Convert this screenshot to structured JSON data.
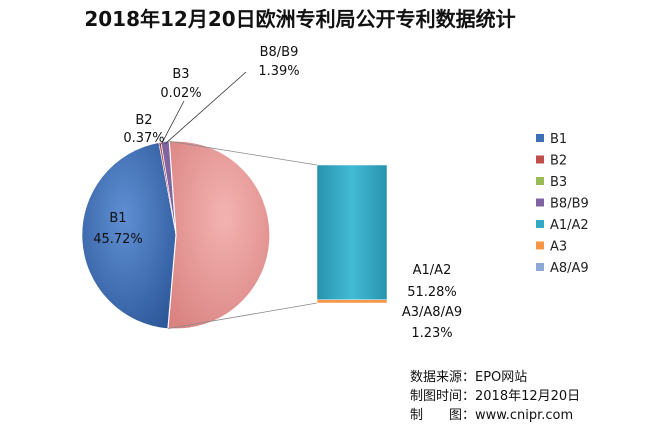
{
  "chart_data": {
    "type": "pie",
    "title": "2018年12月20日欧洲专利局公开专利数据统计",
    "slices": [
      {
        "name": "B1",
        "value": 45.72,
        "label": "45.72%",
        "color": "#3c6fb6"
      },
      {
        "name": "B2",
        "value": 0.37,
        "label": "0.37%",
        "color": "#c0504d"
      },
      {
        "name": "B3",
        "value": 0.02,
        "label": "0.02%",
        "color": "#9bbb59"
      },
      {
        "name": "B8/B9",
        "value": 1.39,
        "label": "1.39%",
        "color": "#8064a2"
      },
      {
        "name": "A1/A2 + A3/A8/A9",
        "value": 52.51,
        "label": "",
        "color": "#e7918f"
      }
    ],
    "breakout": [
      {
        "name": "A1/A2",
        "value": 51.28,
        "label": "51.28%",
        "color": "#31a9c5"
      },
      {
        "name": "A3",
        "value": 1.23,
        "label": "",
        "color": "#f79646"
      },
      {
        "name": "A8/A9",
        "value": 0,
        "label": "",
        "color": "#8ea9d6"
      }
    ],
    "breakout_label": {
      "name": "A3/A8/A9",
      "value": "1.23%"
    },
    "legend": {
      "placement": "right",
      "entries": [
        {
          "name": "B1",
          "color": "#3c6fb6"
        },
        {
          "name": "B2",
          "color": "#c0504d"
        },
        {
          "name": "B3",
          "color": "#9bbb59"
        },
        {
          "name": "B8/B9",
          "color": "#8064a2"
        },
        {
          "name": "A1/A2",
          "color": "#31a9c5"
        },
        {
          "name": "A3",
          "color": "#f79646"
        },
        {
          "name": "A8/A9",
          "color": "#8ea9d6"
        }
      ]
    }
  },
  "source": {
    "line1": "数据来源：EPO网站",
    "line2": "制图时间：2018年12月20日",
    "line3": "制　　图：www.cnipr.com"
  }
}
